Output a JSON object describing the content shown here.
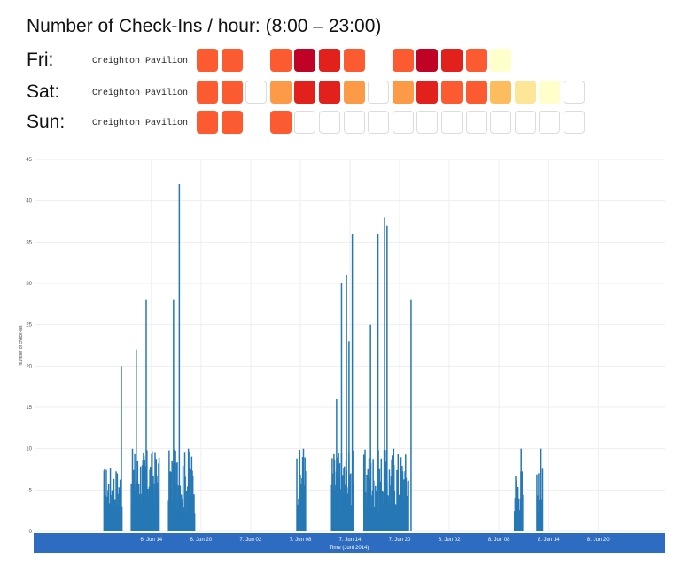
{
  "heatmap": {
    "title": "Number of Check-Ins / hour: (8:00 – 23:00)",
    "hours": [
      8,
      9,
      10,
      11,
      12,
      13,
      14,
      15,
      16,
      17,
      18,
      19,
      20,
      21,
      22,
      23
    ],
    "colors": {
      "0": "#ffffff",
      "1": "#ffffcc",
      "2": "#fee699",
      "3": "#fdbd5e",
      "4": "#fd9a48",
      "5": "#fc5a30",
      "6": "#e2211c",
      "7": "#bf0226"
    },
    "rows": [
      {
        "day": "Fri:",
        "venue": "Creighton Pavilion",
        "levels": [
          5,
          5,
          null,
          5,
          7,
          6,
          5,
          null,
          5,
          7,
          6,
          5,
          1,
          null,
          null,
          null
        ]
      },
      {
        "day": "Sat:",
        "venue": "Creighton Pavilion",
        "levels": [
          5,
          5,
          0,
          4,
          6,
          6,
          4,
          0,
          4,
          6,
          5,
          5,
          3,
          2,
          1,
          0
        ]
      },
      {
        "day": "Sun:",
        "venue": "Creighton Pavilion",
        "levels": [
          5,
          5,
          null,
          5,
          0,
          0,
          0,
          0,
          0,
          0,
          0,
          0,
          0,
          0,
          0,
          0
        ]
      }
    ]
  },
  "chart_data": {
    "type": "bar",
    "ylabel": "number of check-ins",
    "xlabel": "Time (Juni 2014)",
    "ylim": [
      0,
      45
    ],
    "yticks": [
      0,
      5,
      10,
      15,
      20,
      25,
      30,
      35,
      40,
      45
    ],
    "xlim": [
      0,
      76
    ],
    "x_unit": "hours since 6. Jun 00:00",
    "xticks": [
      {
        "x": 14,
        "label": "6. Jun 14"
      },
      {
        "x": 20,
        "label": "6. Jun 20"
      },
      {
        "x": 26,
        "label": "7. Jun 02"
      },
      {
        "x": 32,
        "label": "7. Jun 08"
      },
      {
        "x": 38,
        "label": "7. Jun 14"
      },
      {
        "x": 44,
        "label": "7. Jun 20"
      },
      {
        "x": 50,
        "label": "8. Jun 02"
      },
      {
        "x": 56,
        "label": "8. Jun 08"
      },
      {
        "x": 62,
        "label": "8. Jun 14"
      },
      {
        "x": 68,
        "label": "8. Jun 20"
      }
    ],
    "bar_color": "#2678b5",
    "peaks": [
      {
        "x": 10.3,
        "value": 20
      },
      {
        "x": 12.1,
        "value": 22
      },
      {
        "x": 13.3,
        "value": 28
      },
      {
        "x": 16.6,
        "value": 28
      },
      {
        "x": 17.3,
        "value": 42
      },
      {
        "x": 18.4,
        "value": 10
      },
      {
        "x": 32.3,
        "value": 10
      },
      {
        "x": 36.3,
        "value": 16
      },
      {
        "x": 36.9,
        "value": 30
      },
      {
        "x": 37.5,
        "value": 31
      },
      {
        "x": 37.8,
        "value": 23
      },
      {
        "x": 38.2,
        "value": 36
      },
      {
        "x": 40.4,
        "value": 25
      },
      {
        "x": 41.3,
        "value": 36
      },
      {
        "x": 42.1,
        "value": 38
      },
      {
        "x": 42.4,
        "value": 37
      },
      {
        "x": 43.2,
        "value": 10
      },
      {
        "x": 45.3,
        "value": 28
      },
      {
        "x": 58.6,
        "value": 10
      },
      {
        "x": 61.0,
        "value": 10
      }
    ],
    "blocks": [
      {
        "from": 8.2,
        "to": 10.4,
        "low": 2,
        "high": 8
      },
      {
        "from": 11.5,
        "to": 14.9,
        "low": 3,
        "high": 10
      },
      {
        "from": 16.0,
        "to": 19.2,
        "low": 2,
        "high": 10
      },
      {
        "from": 31.5,
        "to": 32.6,
        "low": 3,
        "high": 10
      },
      {
        "from": 35.7,
        "to": 38.4,
        "low": 2,
        "high": 10
      },
      {
        "from": 39.6,
        "to": 45.0,
        "low": 2,
        "high": 10
      },
      {
        "from": 57.8,
        "to": 58.8,
        "low": 2,
        "high": 8
      },
      {
        "from": 60.5,
        "to": 61.2,
        "low": 2,
        "high": 8
      }
    ]
  }
}
